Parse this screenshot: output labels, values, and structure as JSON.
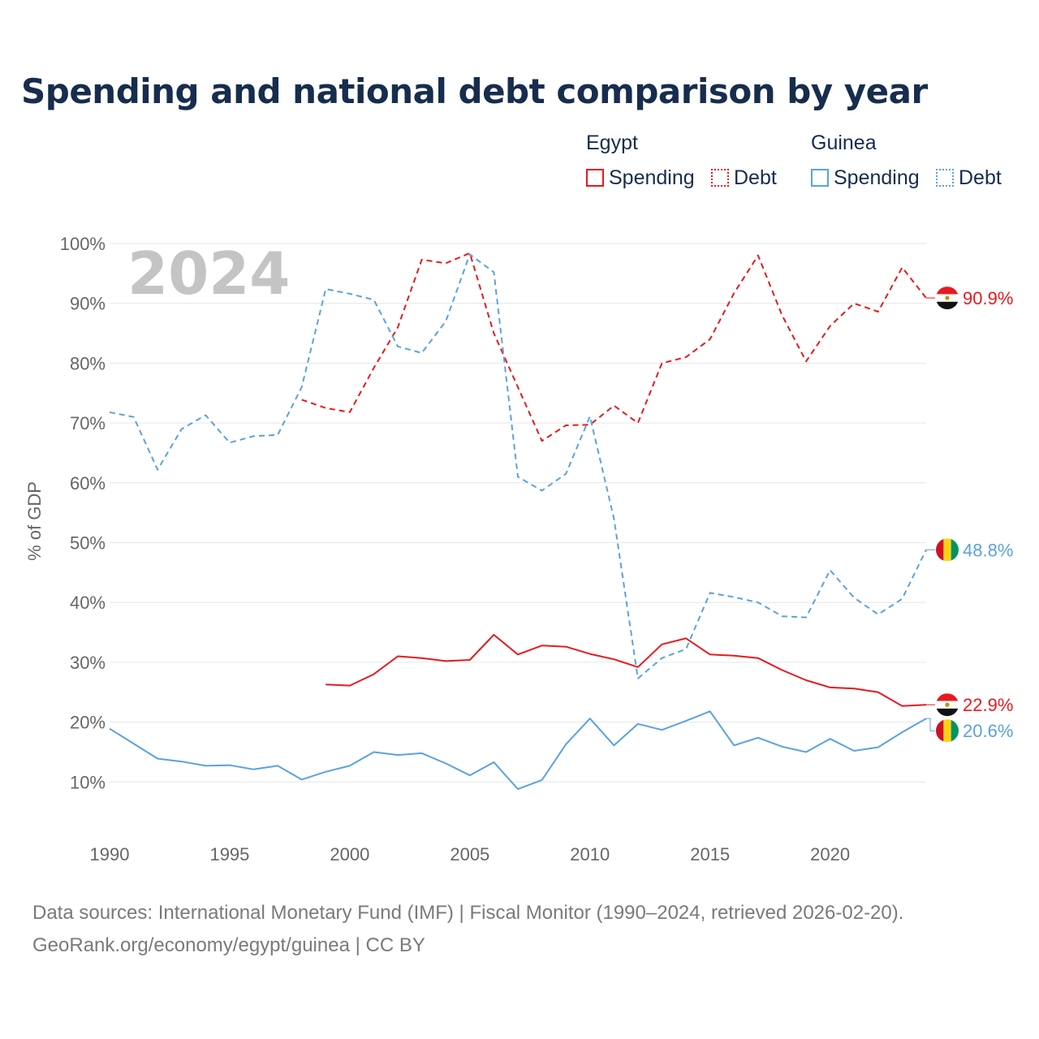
{
  "chart_data": {
    "type": "line",
    "title": "Spending and national debt comparison by year",
    "ylabel": "% of GDP",
    "xlabel": "",
    "year_badge": "2024",
    "xlim": [
      1990,
      2024
    ],
    "ylim": [
      0,
      100
    ],
    "x_ticks": [
      1990,
      1995,
      2000,
      2005,
      2010,
      2015,
      2020
    ],
    "x_tick_labels": [
      "1990",
      "1995",
      "2000",
      "2005",
      "2010",
      "2015",
      "2020"
    ],
    "y_ticks": [
      10,
      20,
      30,
      40,
      50,
      60,
      70,
      80,
      90,
      100
    ],
    "y_tick_labels": [
      "10%",
      "20%",
      "30%",
      "40%",
      "50%",
      "60%",
      "70%",
      "80%",
      "90%",
      "100%"
    ],
    "legend": {
      "groups": [
        {
          "country": "Egypt",
          "items": [
            {
              "label": "Spending",
              "style": "solid",
              "color": "#e8191e"
            },
            {
              "label": "Debt",
              "style": "dotted",
              "color": "#e8191e"
            }
          ]
        },
        {
          "country": "Guinea",
          "items": [
            {
              "label": "Spending",
              "style": "solid",
              "color": "#5aa2e0"
            },
            {
              "label": "Debt",
              "style": "dotted",
              "color": "#5aa2e0"
            }
          ]
        }
      ]
    },
    "series": [
      {
        "name": "Egypt Debt",
        "country": "Egypt",
        "metric": "Debt",
        "color": "#e8191e",
        "dash": "dashed",
        "flag": "egypt-flag-icon",
        "end_label": "90.9%",
        "x": [
          1998,
          1999,
          2000,
          2001,
          2002,
          2003,
          2004,
          2005,
          2006,
          2007,
          2008,
          2009,
          2010,
          2011,
          2012,
          2013,
          2014,
          2015,
          2016,
          2017,
          2018,
          2019,
          2020,
          2021,
          2022,
          2023,
          2024
        ],
        "values": [
          73.9,
          72.5,
          71.8,
          79.2,
          86.0,
          97.3,
          96.7,
          98.4,
          85.0,
          76.0,
          67.0,
          69.6,
          69.7,
          72.9,
          70.0,
          80.0,
          81.0,
          84.0,
          91.7,
          98.0,
          88.0,
          80.3,
          86.2,
          90.0,
          88.6,
          96.0,
          90.9
        ]
      },
      {
        "name": "Guinea Debt",
        "country": "Guinea",
        "metric": "Debt",
        "color": "#5aa2e0",
        "dash": "dashed",
        "flag": "guinea-flag-icon",
        "end_label": "48.8%",
        "x": [
          1990,
          1991,
          1992,
          1993,
          1994,
          1995,
          1996,
          1997,
          1998,
          1999,
          2000,
          2001,
          2002,
          2003,
          2004,
          2005,
          2006,
          2007,
          2008,
          2009,
          2010,
          2011,
          2012,
          2013,
          2014,
          2015,
          2016,
          2017,
          2018,
          2019,
          2020,
          2021,
          2022,
          2023,
          2024
        ],
        "values": [
          71.8,
          71.0,
          62.2,
          69.0,
          71.3,
          66.7,
          67.8,
          68.0,
          76.0,
          92.4,
          91.6,
          90.6,
          82.8,
          81.7,
          87.0,
          98.2,
          95.2,
          61.0,
          58.7,
          61.5,
          71.1,
          54.0,
          27.3,
          30.7,
          32.2,
          41.6,
          40.9,
          40.0,
          37.7,
          37.5,
          45.4,
          40.8,
          38.0,
          40.6,
          48.8
        ]
      },
      {
        "name": "Egypt Spending",
        "country": "Egypt",
        "metric": "Spending",
        "color": "#e8191e",
        "dash": "solid",
        "flag": "egypt-flag-icon",
        "end_label": "22.9%",
        "x": [
          1999,
          2000,
          2001,
          2002,
          2003,
          2004,
          2005,
          2006,
          2007,
          2008,
          2009,
          2010,
          2011,
          2012,
          2013,
          2014,
          2015,
          2016,
          2017,
          2018,
          2019,
          2020,
          2021,
          2022,
          2023,
          2024
        ],
        "values": [
          26.3,
          26.1,
          28.0,
          31.0,
          30.7,
          30.2,
          30.4,
          34.6,
          31.3,
          32.8,
          32.6,
          31.4,
          30.5,
          29.2,
          33.0,
          34.0,
          31.3,
          31.1,
          30.7,
          28.7,
          27.0,
          25.8,
          25.6,
          25.0,
          22.7,
          22.9
        ]
      },
      {
        "name": "Guinea Spending",
        "country": "Guinea",
        "metric": "Spending",
        "color": "#5aa2e0",
        "dash": "solid",
        "flag": "guinea-flag-icon",
        "end_label": "20.6%",
        "x": [
          1990,
          1991,
          1992,
          1993,
          1994,
          1995,
          1996,
          1997,
          1998,
          1999,
          2000,
          2001,
          2002,
          2003,
          2004,
          2005,
          2006,
          2007,
          2008,
          2009,
          2010,
          2011,
          2012,
          2013,
          2014,
          2015,
          2016,
          2017,
          2018,
          2019,
          2020,
          2021,
          2022,
          2023,
          2024
        ],
        "values": [
          18.9,
          16.4,
          13.9,
          13.4,
          12.7,
          12.8,
          12.1,
          12.7,
          10.4,
          11.7,
          12.7,
          15.0,
          14.5,
          14.8,
          13.1,
          11.1,
          13.3,
          8.8,
          10.3,
          16.3,
          20.6,
          16.1,
          19.7,
          18.7,
          20.2,
          21.8,
          16.1,
          17.4,
          15.9,
          15.0,
          17.2,
          15.2,
          15.8,
          18.3,
          20.6
        ]
      }
    ]
  },
  "footer": {
    "sources": "Data sources: International Monetary Fund (IMF) | Fiscal Monitor (1990–2024, retrieved 2026-02-20).",
    "credit": "GeoRank.org/economy/egypt/guinea | CC BY"
  }
}
